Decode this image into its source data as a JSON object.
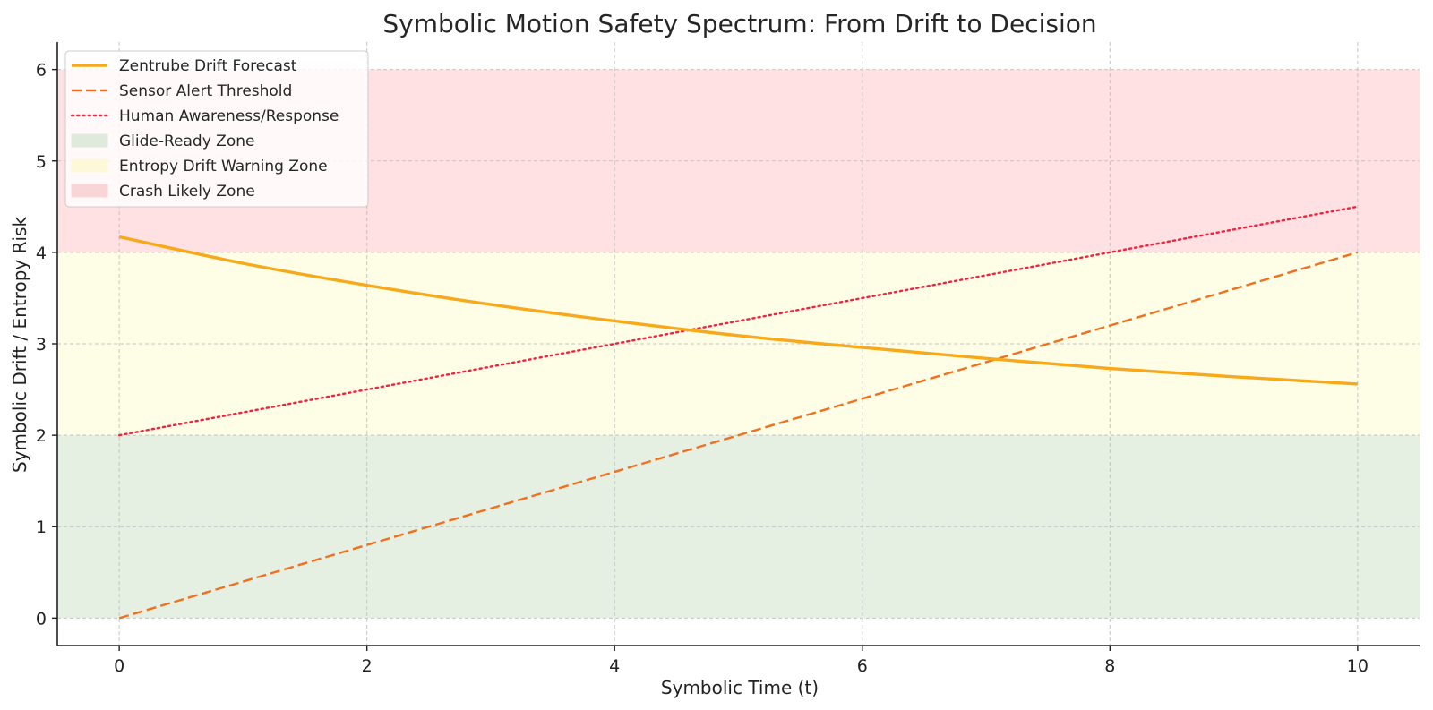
{
  "chart_data": {
    "type": "line",
    "title": "Symbolic Motion Safety Spectrum: From Drift to Decision",
    "xlabel": "Symbolic Time (t)",
    "ylabel": "Symbolic Drift / Entropy Risk",
    "xlim": [
      -0.5,
      10.5
    ],
    "ylim": [
      -0.3,
      6.3
    ],
    "xticks": [
      0,
      2,
      4,
      6,
      8,
      10
    ],
    "yticks": [
      0,
      1,
      2,
      3,
      4,
      5,
      6
    ],
    "grid": true,
    "legend_position": "top-left",
    "zones": [
      {
        "name": "Glide-Ready Zone",
        "y0": 0,
        "y1": 2,
        "color": "#e5f0e3",
        "swatch": "#dfe9dc"
      },
      {
        "name": "Entropy Drift Warning Zone",
        "y0": 2,
        "y1": 4,
        "color": "#fefde6",
        "swatch": "#fcf8d8"
      },
      {
        "name": "Crash Likely Zone",
        "y0": 4,
        "y1": 6,
        "color": "#ffe1e4",
        "swatch": "#fad5d8"
      }
    ],
    "series": [
      {
        "name": "Zentrube Drift Forecast",
        "style": "solid",
        "color": "#f8a91a",
        "x": [
          0,
          1,
          2,
          3,
          4,
          5,
          6,
          7,
          8,
          9,
          10
        ],
        "y": [
          4.17,
          3.88,
          3.64,
          3.43,
          3.25,
          3.09,
          2.96,
          2.84,
          2.73,
          2.64,
          2.56
        ]
      },
      {
        "name": "Sensor Alert Threshold",
        "style": "dashed",
        "color": "#f26f1e",
        "x": [
          0,
          10
        ],
        "y": [
          0,
          4
        ]
      },
      {
        "name": "Human Awareness/Response",
        "style": "dotted",
        "color": "#f0243f",
        "x": [
          0,
          10
        ],
        "y": [
          2,
          4.5
        ]
      }
    ]
  }
}
